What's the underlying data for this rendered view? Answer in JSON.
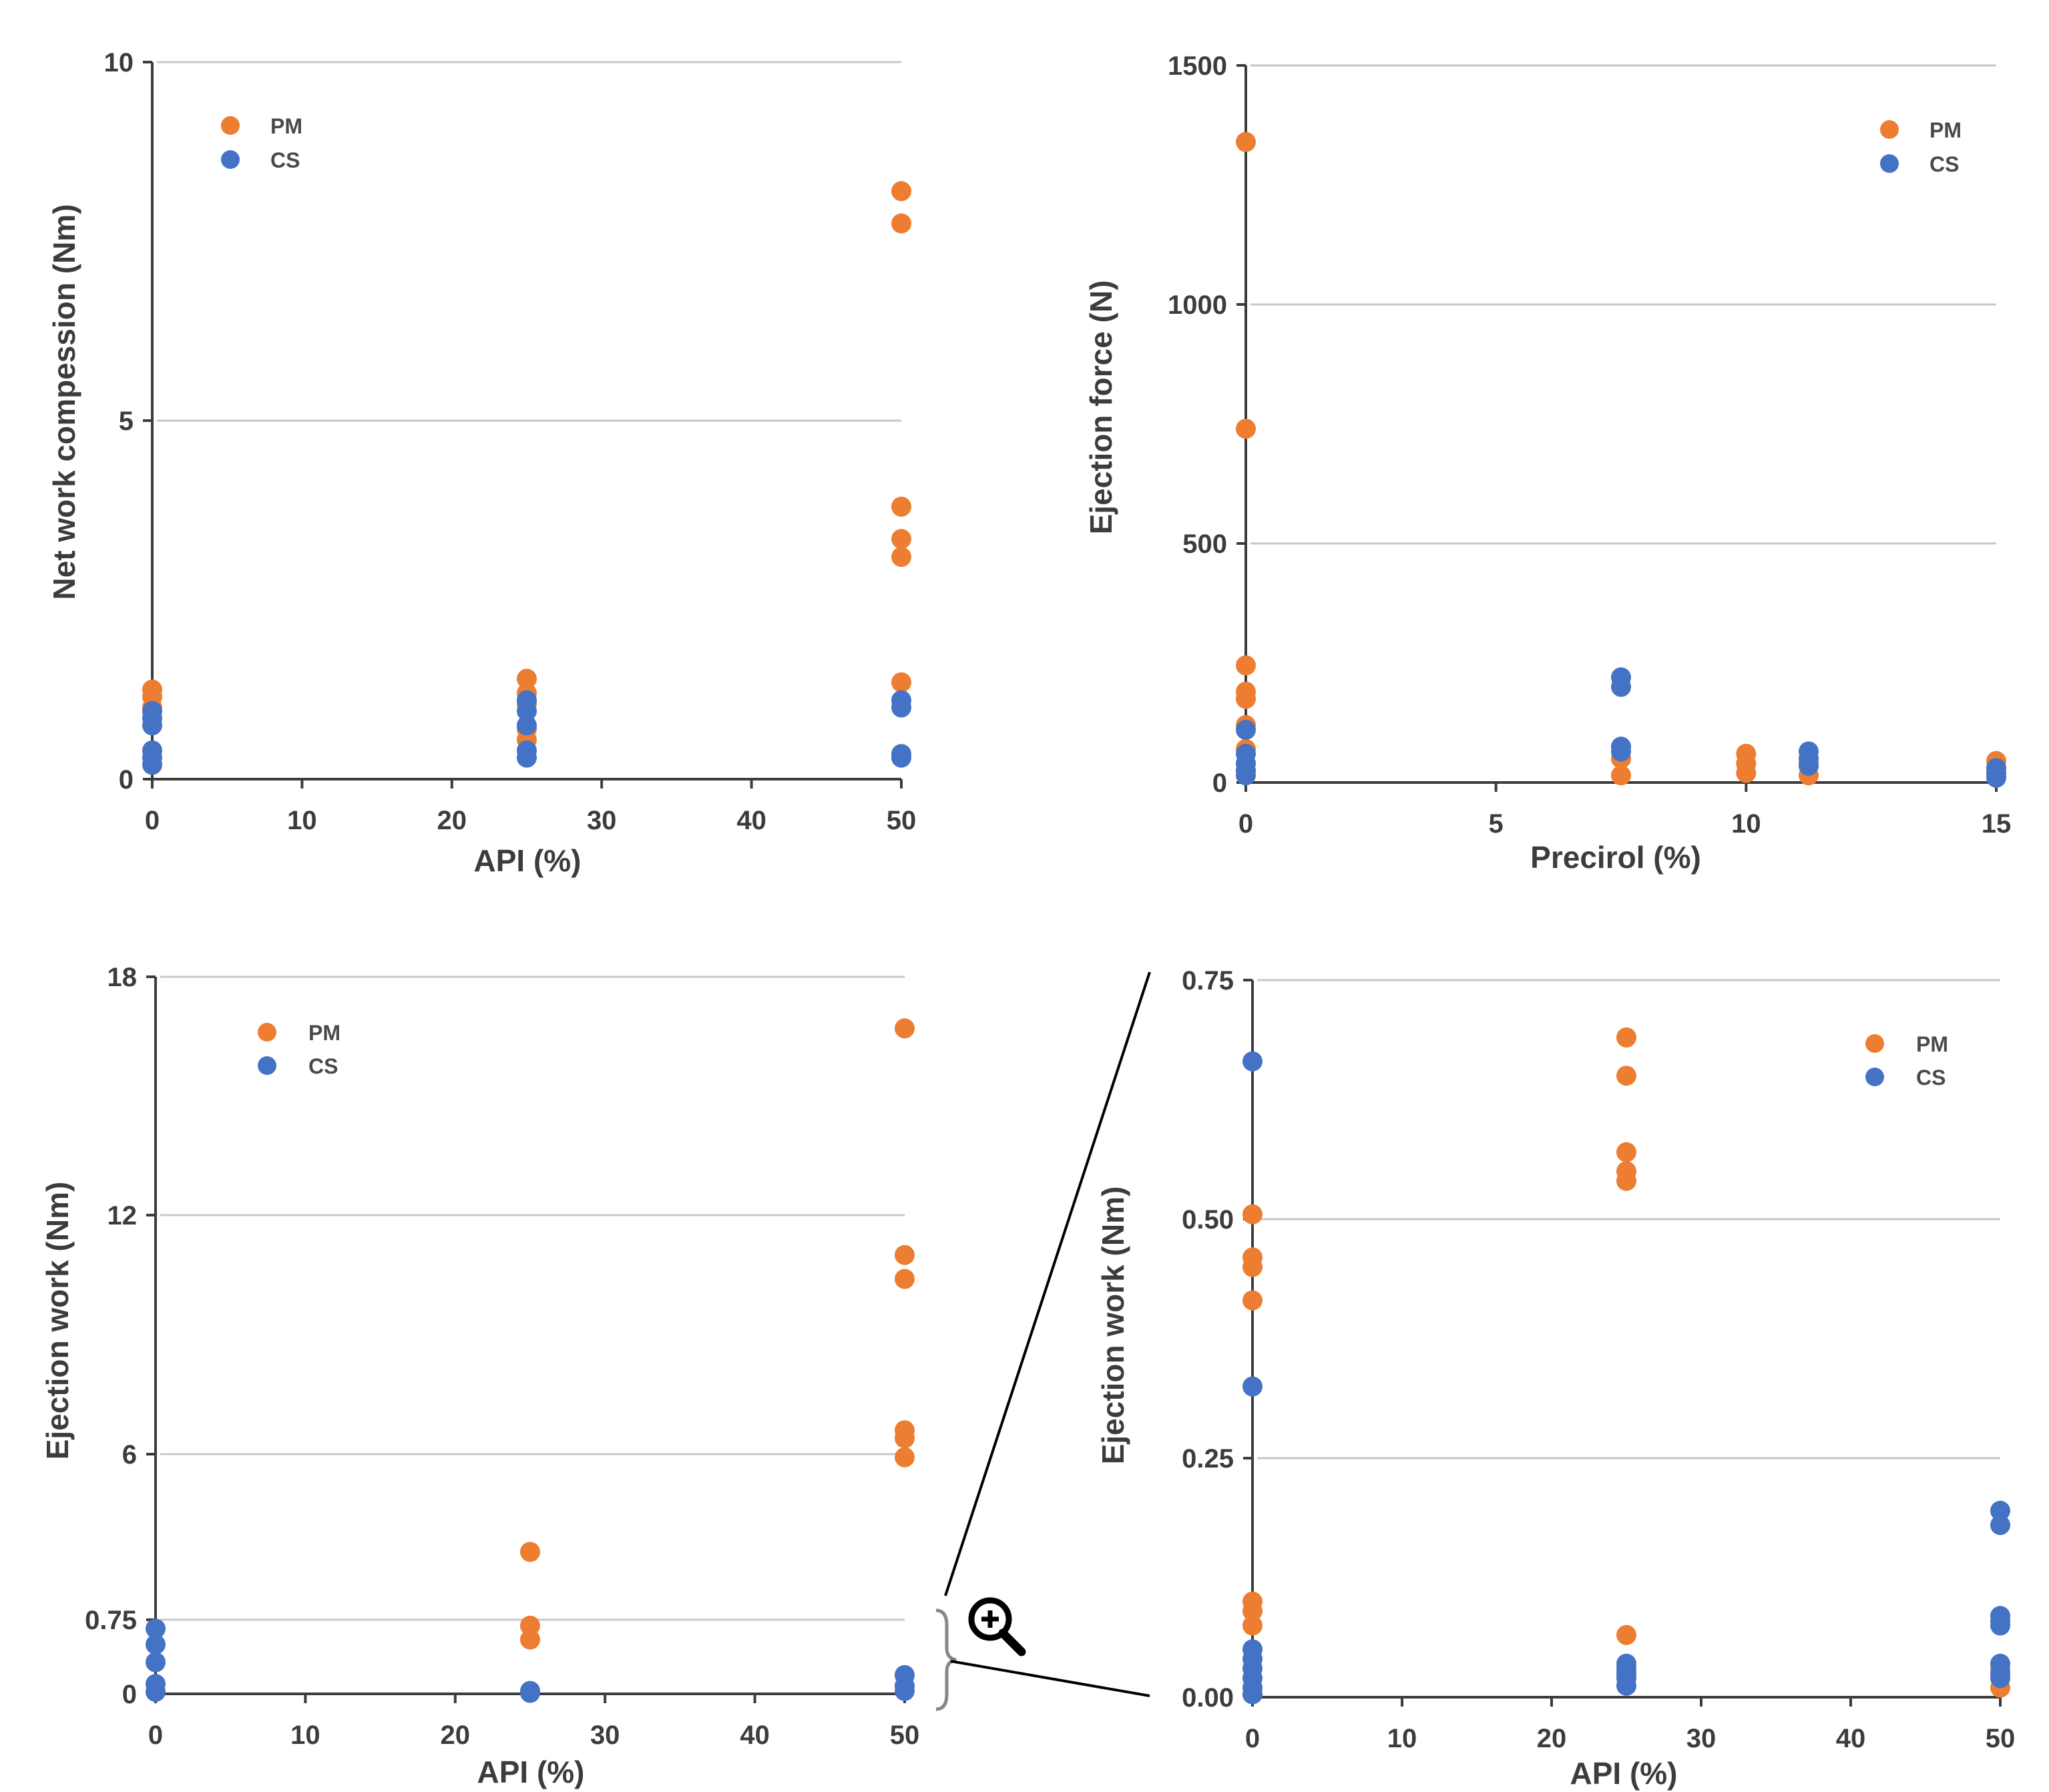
{
  "colors": {
    "PM": "#ED7D31",
    "CS": "#4472C4",
    "grid": "#C8C8C8",
    "axis": "#3C3C3C"
  },
  "chart_data": [
    {
      "type": "scatter",
      "xlabel": "API (%)",
      "ylabel": "Net work compession (Nm)",
      "xlim": [
        0,
        50
      ],
      "ylim": [
        0,
        10
      ],
      "xticks": [
        0,
        10,
        20,
        30,
        40,
        50
      ],
      "yticks": [
        0,
        5,
        10
      ],
      "ytick_labels": [
        "0",
        "5",
        "10"
      ],
      "legend": "top-left",
      "series": [
        {
          "name": "PM",
          "color": "#ED7D31",
          "points": [
            [
              0,
              1.25
            ],
            [
              0,
              1.15
            ],
            [
              0,
              1.0
            ],
            [
              25,
              1.4
            ],
            [
              25,
              1.2
            ],
            [
              25,
              1.05
            ],
            [
              25,
              0.7
            ],
            [
              25,
              0.55
            ],
            [
              50,
              8.2
            ],
            [
              50,
              7.75
            ],
            [
              50,
              3.8
            ],
            [
              50,
              3.35
            ],
            [
              50,
              3.1
            ],
            [
              50,
              1.35
            ]
          ]
        },
        {
          "name": "CS",
          "color": "#4472C4",
          "points": [
            [
              0,
              0.95
            ],
            [
              0,
              0.85
            ],
            [
              0,
              0.75
            ],
            [
              0,
              0.4
            ],
            [
              0,
              0.3
            ],
            [
              0,
              0.2
            ],
            [
              25,
              1.1
            ],
            [
              25,
              0.95
            ],
            [
              25,
              0.75
            ],
            [
              25,
              0.4
            ],
            [
              25,
              0.3
            ],
            [
              50,
              1.1
            ],
            [
              50,
              1.0
            ],
            [
              50,
              0.35
            ],
            [
              50,
              0.3
            ]
          ]
        }
      ]
    },
    {
      "type": "scatter",
      "xlabel": "Precirol (%)",
      "ylabel": "Ejection force (N)",
      "xlim": [
        0,
        15
      ],
      "ylim": [
        0,
        1500
      ],
      "xticks": [
        0,
        5,
        10,
        15
      ],
      "yticks": [
        0,
        500,
        1000,
        1500
      ],
      "ytick_labels": [
        "0",
        "500",
        "1000",
        "1500"
      ],
      "legend": "top-right",
      "series": [
        {
          "name": "PM",
          "color": "#ED7D31",
          "points": [
            [
              0,
              1340
            ],
            [
              0,
              740
            ],
            [
              0,
              245
            ],
            [
              0,
              190
            ],
            [
              0,
              175
            ],
            [
              0,
              120
            ],
            [
              0,
              70
            ],
            [
              7.5,
              50
            ],
            [
              7.5,
              15
            ],
            [
              10,
              60
            ],
            [
              10,
              40
            ],
            [
              10,
              20
            ],
            [
              11.25,
              40
            ],
            [
              11.25,
              15
            ],
            [
              15,
              45
            ],
            [
              15,
              30
            ]
          ]
        },
        {
          "name": "CS",
          "color": "#4472C4",
          "points": [
            [
              0,
              110
            ],
            [
              0,
              60
            ],
            [
              0,
              40
            ],
            [
              0,
              25
            ],
            [
              0,
              15
            ],
            [
              7.5,
              220
            ],
            [
              7.5,
              200
            ],
            [
              7.5,
              75
            ],
            [
              7.5,
              65
            ],
            [
              11.25,
              65
            ],
            [
              11.25,
              50
            ],
            [
              11.25,
              35
            ],
            [
              15,
              30
            ],
            [
              15,
              20
            ],
            [
              15,
              10
            ]
          ]
        }
      ]
    },
    {
      "type": "scatter",
      "xlabel": "API (%)",
      "ylabel": "Ejection work (Nm)",
      "xlim": [
        0,
        50
      ],
      "ylim": [
        0,
        18
      ],
      "xticks": [
        0,
        10,
        20,
        30,
        40,
        50
      ],
      "yticks": [
        0,
        0.75,
        6,
        12,
        18
      ],
      "ytick_labels": [
        "0",
        "0.75",
        "6",
        "12",
        "18"
      ],
      "legend": "top-left",
      "series": [
        {
          "name": "PM",
          "color": "#ED7D31",
          "points": [
            [
              25,
              2.9
            ],
            [
              25,
              0.69
            ],
            [
              25,
              0.55
            ],
            [
              50,
              16.7
            ],
            [
              50,
              11.0
            ],
            [
              50,
              10.4
            ],
            [
              50,
              6.6
            ],
            [
              50,
              6.4
            ],
            [
              50,
              5.9
            ]
          ]
        },
        {
          "name": "CS",
          "color": "#4472C4",
          "points": [
            [
              0,
              0.66
            ],
            [
              0,
              0.5
            ],
            [
              0,
              0.32
            ],
            [
              0,
              0.1
            ],
            [
              0,
              0.02
            ],
            [
              25,
              0.03
            ],
            [
              25,
              0.01
            ],
            [
              50,
              0.19
            ],
            [
              50,
              0.08
            ],
            [
              50,
              0.03
            ]
          ]
        }
      ]
    },
    {
      "type": "scatter",
      "xlabel": "API (%)",
      "ylabel": "Ejection work (Nm)",
      "xlim": [
        0,
        50
      ],
      "ylim": [
        0,
        0.75
      ],
      "xticks": [
        0,
        10,
        20,
        30,
        40,
        50
      ],
      "yticks": [
        0,
        0.25,
        0.5,
        0.75
      ],
      "ytick_labels": [
        "0.00",
        "0.25",
        "0.50",
        "0.75"
      ],
      "legend": "top-right",
      "series": [
        {
          "name": "PM",
          "color": "#ED7D31",
          "points": [
            [
              0,
              0.505
            ],
            [
              0,
              0.46
            ],
            [
              0,
              0.45
            ],
            [
              0,
              0.415
            ],
            [
              0,
              0.1
            ],
            [
              0,
              0.09
            ],
            [
              0,
              0.075
            ],
            [
              25,
              0.69
            ],
            [
              25,
              0.65
            ],
            [
              25,
              0.57
            ],
            [
              25,
              0.55
            ],
            [
              25,
              0.54
            ],
            [
              25,
              0.065
            ],
            [
              50,
              0.03
            ],
            [
              50,
              0.01
            ]
          ]
        },
        {
          "name": "CS",
          "color": "#4472C4",
          "points": [
            [
              0,
              0.665
            ],
            [
              0,
              0.325
            ],
            [
              0,
              0.05
            ],
            [
              0,
              0.04
            ],
            [
              0,
              0.03
            ],
            [
              0,
              0.02
            ],
            [
              0,
              0.01
            ],
            [
              0,
              0.003
            ],
            [
              25,
              0.035
            ],
            [
              25,
              0.03
            ],
            [
              25,
              0.025
            ],
            [
              25,
              0.02
            ],
            [
              25,
              0.012
            ],
            [
              50,
              0.195
            ],
            [
              50,
              0.18
            ],
            [
              50,
              0.085
            ],
            [
              50,
              0.08
            ],
            [
              50,
              0.075
            ],
            [
              50,
              0.035
            ],
            [
              50,
              0.025
            ],
            [
              50,
              0.02
            ]
          ]
        }
      ]
    }
  ]
}
